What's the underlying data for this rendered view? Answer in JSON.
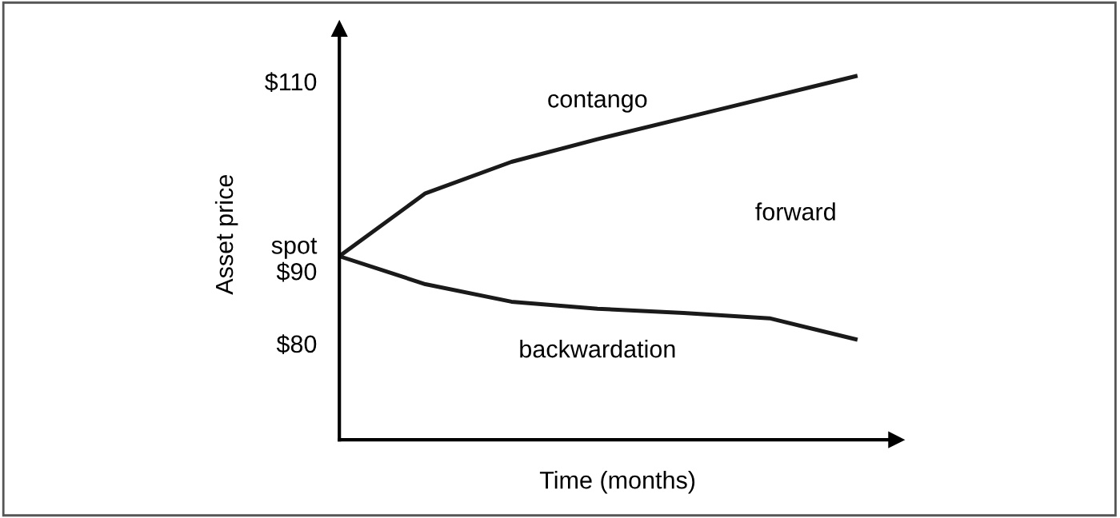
{
  "chart_data": {
    "type": "line",
    "xlabel": "Time (months)",
    "ylabel": "Asset price",
    "categories": [
      null,
      null,
      null,
      null,
      null,
      null,
      null
    ],
    "series": [
      {
        "name": "contango",
        "color": "#1a1a1a",
        "values": [
          90,
          97.2,
          100.8,
          103.4,
          105.8,
          108.2,
          110.6
        ]
      },
      {
        "name": "backwardation",
        "color": "#1a1a1a",
        "values": [
          90,
          86.8,
          84.8,
          84,
          83.5,
          82.9,
          80.5
        ]
      }
    ],
    "ylim": [
      69,
      116
    ],
    "yticks": [
      {
        "value": 80,
        "label": "$80"
      },
      {
        "value": 90,
        "label": "spot\n$90"
      },
      {
        "value": 110,
        "label": "$110"
      }
    ],
    "annotations": [
      "forward"
    ],
    "grid": false,
    "legend": false,
    "marker": "none",
    "line_style": "solid"
  }
}
